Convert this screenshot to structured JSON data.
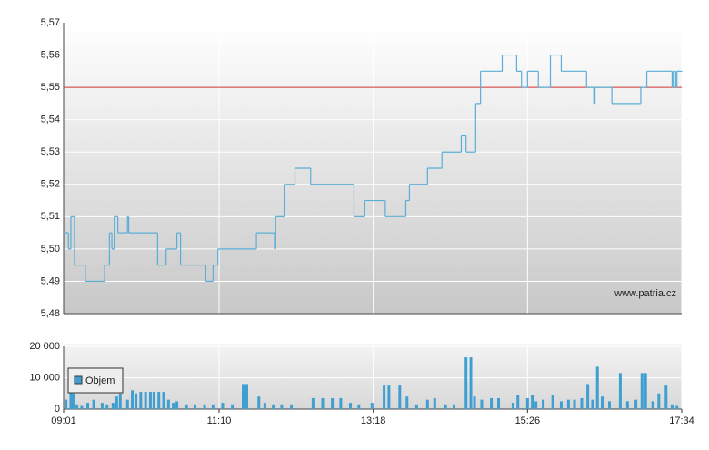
{
  "chart_data": [
    {
      "type": "line",
      "step": true,
      "color": "#5aaed6",
      "reference_line": 5.55,
      "reference_color": "#cc3333",
      "watermark": "www.patria.cz",
      "x": [
        "09:01",
        "09:05",
        "09:07",
        "09:10",
        "09:19",
        "09:35",
        "09:39",
        "09:41",
        "09:43",
        "09:46",
        "09:54",
        "09:55",
        "10:19",
        "10:26",
        "10:35",
        "10:38",
        "10:59",
        "11:05",
        "11:09",
        "11:41",
        "11:56",
        "11:57",
        "12:04",
        "12:13",
        "12:26",
        "13:02",
        "13:11",
        "13:28",
        "13:45",
        "13:48",
        "14:03",
        "14:15",
        "14:31",
        "14:35",
        "14:43",
        "14:47",
        "15:05",
        "15:17",
        "15:21",
        "15:26",
        "15:35",
        "15:45",
        "15:54",
        "16:15",
        "16:21",
        "16:22",
        "16:36",
        "17:00",
        "17:05",
        "17:26",
        "17:27",
        "17:29",
        "17:30",
        "17:34"
      ],
      "values": [
        5.505,
        5.5,
        5.51,
        5.495,
        5.49,
        5.495,
        5.505,
        5.5,
        5.51,
        5.505,
        5.51,
        5.505,
        5.495,
        5.5,
        5.505,
        5.495,
        5.49,
        5.495,
        5.5,
        5.505,
        5.5,
        5.51,
        5.52,
        5.525,
        5.52,
        5.51,
        5.515,
        5.51,
        5.515,
        5.52,
        5.525,
        5.53,
        5.535,
        5.53,
        5.545,
        5.555,
        5.56,
        5.555,
        5.55,
        5.555,
        5.55,
        5.56,
        5.555,
        5.55,
        5.545,
        5.55,
        5.545,
        5.55,
        5.555,
        5.55,
        5.555,
        5.55,
        5.555,
        5.555
      ],
      "xlim": [
        "09:01",
        "17:34"
      ],
      "ylim": [
        5.48,
        5.57
      ],
      "yticks": [
        {
          "value": 5.48,
          "label": "5,48"
        },
        {
          "value": 5.49,
          "label": "5,49"
        },
        {
          "value": 5.5,
          "label": "5,50"
        },
        {
          "value": 5.51,
          "label": "5,51"
        },
        {
          "value": 5.52,
          "label": "5,52"
        },
        {
          "value": 5.53,
          "label": "5,53"
        },
        {
          "value": 5.54,
          "label": "5,54"
        },
        {
          "value": 5.55,
          "label": "5,55"
        },
        {
          "value": 5.56,
          "label": "5,56"
        },
        {
          "value": 5.57,
          "label": "5,57"
        }
      ],
      "grid": true
    },
    {
      "type": "bar",
      "color": "#3f9fd0",
      "legend": "Objem",
      "x": [
        "09:03",
        "09:07",
        "09:09",
        "09:12",
        "09:16",
        "09:21",
        "09:26",
        "09:33",
        "09:37",
        "09:42",
        "09:45",
        "09:48",
        "09:54",
        "09:58",
        "10:01",
        "10:05",
        "10:09",
        "10:13",
        "10:16",
        "10:20",
        "10:24",
        "10:28",
        "10:32",
        "10:35",
        "10:43",
        "10:50",
        "10:58",
        "11:05",
        "11:13",
        "11:21",
        "11:30",
        "11:33",
        "11:43",
        "11:48",
        "11:55",
        "12:02",
        "12:10",
        "12:28",
        "12:36",
        "12:44",
        "12:51",
        "12:59",
        "13:06",
        "13:17",
        "13:27",
        "13:31",
        "13:40",
        "13:46",
        "13:54",
        "14:03",
        "14:09",
        "14:18",
        "14:25",
        "14:35",
        "14:39",
        "14:42",
        "14:48",
        "14:56",
        "15:02",
        "15:14",
        "15:18",
        "15:26",
        "15:30",
        "15:33",
        "15:39",
        "15:47",
        "15:54",
        "16:00",
        "16:05",
        "16:11",
        "16:16",
        "16:20",
        "16:24",
        "16:28",
        "16:34",
        "16:43",
        "16:49",
        "16:56",
        "17:01",
        "17:04",
        "17:10",
        "17:15",
        "17:21",
        "17:26",
        "17:30"
      ],
      "values": [
        3000,
        8000,
        5000,
        1500,
        1000,
        2000,
        3000,
        2000,
        1500,
        2000,
        4000,
        5000,
        3000,
        6000,
        5000,
        5500,
        5500,
        5500,
        5500,
        5500,
        5500,
        3000,
        2000,
        2500,
        1500,
        1500,
        1500,
        1500,
        2000,
        1500,
        8000,
        8000,
        4000,
        2000,
        1500,
        1500,
        1500,
        3500,
        3500,
        3500,
        3500,
        2000,
        1500,
        2000,
        7500,
        7500,
        7500,
        4000,
        1500,
        3000,
        3500,
        1500,
        1500,
        16500,
        16500,
        4000,
        3000,
        3500,
        3500,
        2000,
        4500,
        3500,
        4500,
        2500,
        3000,
        4500,
        2500,
        3000,
        3000,
        3500,
        8000,
        3000,
        13500,
        4000,
        2500,
        11500,
        2500,
        3000,
        11500,
        11500,
        2500,
        5000,
        7500,
        1500,
        1000
      ],
      "xlim": [
        "09:01",
        "17:34"
      ],
      "ylim": [
        0,
        20000
      ],
      "xticks": [
        "09:01",
        "11:10",
        "13:18",
        "15:26",
        "17:34"
      ],
      "yticks": [
        0,
        {
          "value": 10000,
          "label": "10 000"
        },
        {
          "value": 20000,
          "label": "20 000"
        }
      ],
      "grid": true
    }
  ]
}
